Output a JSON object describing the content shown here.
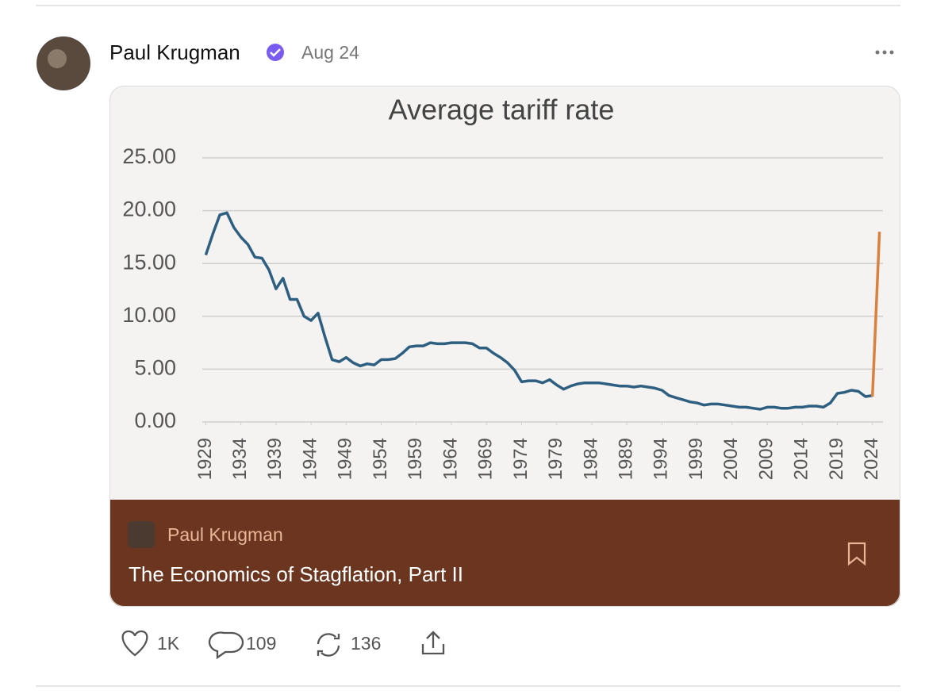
{
  "post": {
    "author": "Paul Krugman",
    "date": "Aug 24",
    "card": {
      "author": "Paul Krugman",
      "title": "The Economics of Stagflation, Part II"
    },
    "actions": {
      "likes": "1K",
      "comments": 109,
      "reposts": 136
    }
  },
  "chart_data": {
    "type": "line",
    "title": "Average tariff rate",
    "x": [
      1929,
      1930,
      1931,
      1932,
      1933,
      1934,
      1935,
      1936,
      1937,
      1938,
      1939,
      1940,
      1941,
      1942,
      1943,
      1944,
      1945,
      1946,
      1947,
      1948,
      1949,
      1950,
      1951,
      1952,
      1953,
      1954,
      1955,
      1956,
      1957,
      1958,
      1959,
      1960,
      1961,
      1962,
      1963,
      1964,
      1965,
      1966,
      1967,
      1968,
      1969,
      1970,
      1971,
      1972,
      1973,
      1974,
      1975,
      1976,
      1977,
      1978,
      1979,
      1980,
      1981,
      1982,
      1983,
      1984,
      1985,
      1986,
      1987,
      1988,
      1989,
      1990,
      1991,
      1992,
      1993,
      1994,
      1995,
      1996,
      1997,
      1998,
      1999,
      2000,
      2001,
      2002,
      2003,
      2004,
      2005,
      2006,
      2007,
      2008,
      2009,
      2010,
      2011,
      2012,
      2013,
      2014,
      2015,
      2016,
      2017,
      2018,
      2019,
      2020,
      2021,
      2022,
      2023,
      2024,
      2025
    ],
    "series": [
      {
        "color": "#2e5f80",
        "values": [
          15.8,
          17.8,
          19.6,
          19.8,
          18.4,
          17.5,
          16.8,
          15.6,
          15.5,
          14.4,
          12.6,
          13.6,
          11.6,
          11.6,
          10.0,
          9.6,
          10.3,
          8.0,
          5.9,
          5.7,
          6.1,
          5.6,
          5.3,
          5.5,
          5.4,
          5.9,
          5.9,
          6.0,
          6.5,
          7.1,
          7.2,
          7.2,
          7.5,
          7.4,
          7.4,
          7.5,
          7.5,
          7.5,
          7.4,
          7.0,
          7.0,
          6.5,
          6.1,
          5.6,
          4.9,
          3.8,
          3.9,
          3.9,
          3.7,
          4.0,
          3.5,
          3.1,
          3.4,
          3.6,
          3.7,
          3.7,
          3.7,
          3.6,
          3.5,
          3.4,
          3.4,
          3.3,
          3.4,
          3.3,
          3.2,
          3.0,
          2.5,
          2.3,
          2.1,
          1.9,
          1.8,
          1.6,
          1.7,
          1.7,
          1.6,
          1.5,
          1.4,
          1.4,
          1.3,
          1.2,
          1.4,
          1.4,
          1.3,
          1.3,
          1.4,
          1.4,
          1.5,
          1.5,
          1.4,
          1.8,
          2.7,
          2.8,
          3.0,
          2.9,
          2.4,
          2.5,
          null
        ]
      },
      {
        "color": "#d9823f",
        "values": [
          null,
          null,
          null,
          null,
          null,
          null,
          null,
          null,
          null,
          null,
          null,
          null,
          null,
          null,
          null,
          null,
          null,
          null,
          null,
          null,
          null,
          null,
          null,
          null,
          null,
          null,
          null,
          null,
          null,
          null,
          null,
          null,
          null,
          null,
          null,
          null,
          null,
          null,
          null,
          null,
          null,
          null,
          null,
          null,
          null,
          null,
          null,
          null,
          null,
          null,
          null,
          null,
          null,
          null,
          null,
          null,
          null,
          null,
          null,
          null,
          null,
          null,
          null,
          null,
          null,
          null,
          null,
          null,
          null,
          null,
          null,
          null,
          null,
          null,
          null,
          null,
          null,
          null,
          null,
          null,
          null,
          null,
          null,
          null,
          null,
          null,
          null,
          null,
          null,
          null,
          null,
          null,
          null,
          null,
          null,
          2.4,
          18.0
        ]
      }
    ],
    "xlim": [
      1928.5,
      2025.5
    ],
    "xticks": [
      1929,
      1934,
      1939,
      1944,
      1949,
      1954,
      1959,
      1964,
      1969,
      1974,
      1979,
      1984,
      1989,
      1994,
      1999,
      2004,
      2009,
      2014,
      2019,
      2024
    ],
    "ylim": [
      0,
      25
    ],
    "yticks": [
      {
        "value": 0,
        "label": "0.00"
      },
      {
        "value": 5,
        "label": "5.00"
      },
      {
        "value": 10,
        "label": "10.00"
      },
      {
        "value": 15,
        "label": "15.00"
      },
      {
        "value": 20,
        "label": "20.00"
      },
      {
        "value": 25,
        "label": "25.00"
      }
    ],
    "grid": true
  }
}
